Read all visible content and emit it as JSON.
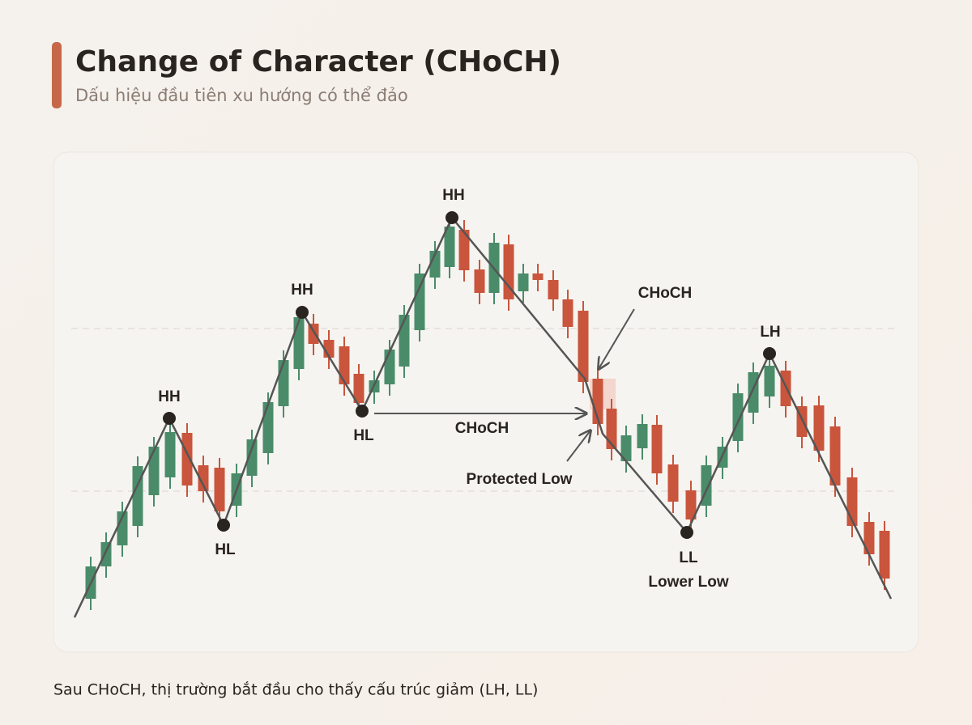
{
  "header": {
    "title": "Change of Character (CHoCH)",
    "subtitle": "Dấu hiệu đầu tiên xu hướng có thể đảo"
  },
  "labels": {
    "hh1": "HH",
    "hl1": "HL",
    "hh2": "HH",
    "hl2": "HL",
    "hh3": "HH",
    "choch_top": "CHoCH",
    "choch_mid": "CHoCH",
    "protected_low": "Protected Low",
    "ll": "LL",
    "lower_low": "Lower Low",
    "lh": "LH"
  },
  "footer": {
    "caption": "Sau CHoCH, thị trường bắt đầu cho thấy cấu trúc giảm (LH, LL)"
  }
}
